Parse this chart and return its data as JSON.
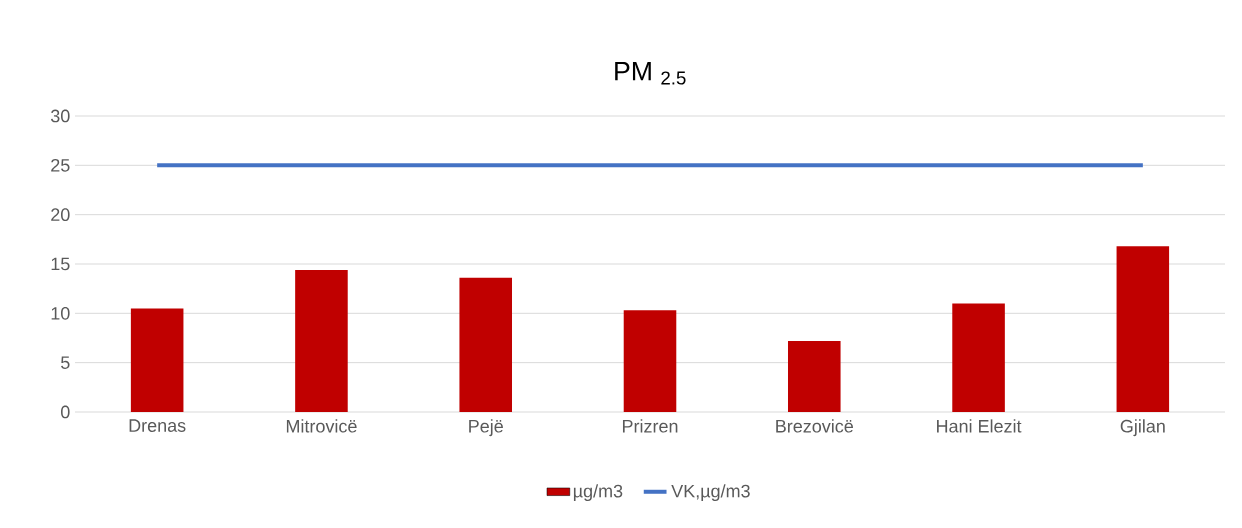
{
  "chart_data": {
    "type": "bar",
    "title": "PM $_{2.5}$",
    "categories": [
      "Drenas",
      "Mitrovicë",
      "Pejë",
      "Prizren",
      "Brezovicë",
      "Hani Elezit",
      "Gjilan"
    ],
    "series": [
      {
        "name": "µg/m3",
        "color": "#c00000",
        "values": [
          10.5,
          14.4,
          13.6,
          10.3,
          7.2,
          11.0,
          16.8
        ]
      },
      {
        "name": "VK,µg/m3",
        "type": "line",
        "color": "#4472c4",
        "values": [
          25,
          25,
          25,
          25,
          25,
          25,
          25
        ]
      }
    ],
    "ylim": [
      0,
      30
    ],
    "yticks": [
      0,
      5,
      10,
      15,
      20,
      25,
      30
    ],
    "grid": "y",
    "legend": "bottom"
  }
}
